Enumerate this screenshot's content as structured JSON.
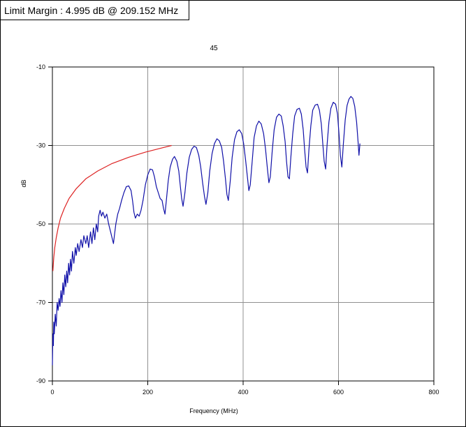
{
  "header": {
    "title": "Limit Margin : 4.995 dB @ 209.152 MHz"
  },
  "chart_data": {
    "type": "line",
    "title": "45",
    "xlabel": "Frequency (MHz)",
    "ylabel": "dB",
    "xlim": [
      0,
      800
    ],
    "ylim": [
      -90,
      -10
    ],
    "xticks": [
      0,
      200,
      400,
      600,
      800
    ],
    "yticks": [
      -10,
      -30,
      -50,
      -70,
      -90
    ],
    "grid": true,
    "colors": {
      "measured": "#1010a8",
      "limit": "#dd2222",
      "grid": "#909090"
    },
    "series": [
      {
        "color": "#dd2222",
        "points": [
          [
            1,
            -62
          ],
          [
            2,
            -60
          ],
          [
            3,
            -58.5
          ],
          [
            5,
            -56
          ],
          [
            8,
            -53.5
          ],
          [
            12,
            -51
          ],
          [
            17,
            -48.5
          ],
          [
            25,
            -46
          ],
          [
            35,
            -43.5
          ],
          [
            50,
            -41
          ],
          [
            70,
            -38.5
          ],
          [
            95,
            -36.5
          ],
          [
            125,
            -34.6
          ],
          [
            160,
            -33
          ],
          [
            195,
            -31.7
          ],
          [
            230,
            -30.6
          ],
          [
            250,
            -30
          ]
        ]
      },
      {
        "color": "#1010a8",
        "points": [
          [
            0,
            -86
          ],
          [
            1,
            -78
          ],
          [
            2,
            -81
          ],
          [
            3,
            -75
          ],
          [
            4,
            -78
          ],
          [
            6,
            -73
          ],
          [
            8,
            -76
          ],
          [
            10,
            -70
          ],
          [
            12,
            -72
          ],
          [
            14,
            -69
          ],
          [
            16,
            -71
          ],
          [
            18,
            -67
          ],
          [
            20,
            -70
          ],
          [
            22,
            -65
          ],
          [
            24,
            -68
          ],
          [
            26,
            -63
          ],
          [
            28,
            -66
          ],
          [
            30,
            -62
          ],
          [
            32,
            -65
          ],
          [
            34,
            -60
          ],
          [
            36,
            -63
          ],
          [
            38,
            -59
          ],
          [
            40,
            -62
          ],
          [
            42,
            -57
          ],
          [
            45,
            -60
          ],
          [
            48,
            -56
          ],
          [
            50,
            -58
          ],
          [
            53,
            -55
          ],
          [
            56,
            -57
          ],
          [
            60,
            -54
          ],
          [
            63,
            -56
          ],
          [
            66,
            -53
          ],
          [
            70,
            -55
          ],
          [
            73,
            -53
          ],
          [
            76,
            -56
          ],
          [
            80,
            -52
          ],
          [
            83,
            -55
          ],
          [
            86,
            -51
          ],
          [
            89,
            -54
          ],
          [
            92,
            -50
          ],
          [
            95,
            -52
          ],
          [
            97,
            -48
          ],
          [
            100,
            -46.5
          ],
          [
            103,
            -48
          ],
          [
            106,
            -47
          ],
          [
            110,
            -48.5
          ],
          [
            114,
            -47.5
          ],
          [
            118,
            -50
          ],
          [
            122,
            -52
          ],
          [
            126,
            -54
          ],
          [
            128,
            -55
          ],
          [
            130,
            -53
          ],
          [
            133,
            -50
          ],
          [
            137,
            -47.5
          ],
          [
            141,
            -46
          ],
          [
            145,
            -44
          ],
          [
            150,
            -42
          ],
          [
            155,
            -40.5
          ],
          [
            160,
            -40.3
          ],
          [
            165,
            -41.5
          ],
          [
            168,
            -44
          ],
          [
            171,
            -47
          ],
          [
            174,
            -48.5
          ],
          [
            178,
            -47.5
          ],
          [
            182,
            -48
          ],
          [
            186,
            -46.5
          ],
          [
            190,
            -44
          ],
          [
            195,
            -40
          ],
          [
            200,
            -37.5
          ],
          [
            205,
            -36
          ],
          [
            210,
            -36.2
          ],
          [
            214,
            -38
          ],
          [
            218,
            -40.5
          ],
          [
            222,
            -42
          ],
          [
            226,
            -43.5
          ],
          [
            230,
            -44
          ],
          [
            233,
            -46
          ],
          [
            236,
            -47.5
          ],
          [
            239,
            -44
          ],
          [
            243,
            -39
          ],
          [
            247,
            -35.5
          ],
          [
            252,
            -33.5
          ],
          [
            256,
            -32.8
          ],
          [
            261,
            -34
          ],
          [
            265,
            -36.5
          ],
          [
            268,
            -40
          ],
          [
            271,
            -43.5
          ],
          [
            274,
            -45.5
          ],
          [
            278,
            -42
          ],
          [
            282,
            -37
          ],
          [
            287,
            -33
          ],
          [
            292,
            -31
          ],
          [
            297,
            -30.2
          ],
          [
            302,
            -30.5
          ],
          [
            307,
            -32.5
          ],
          [
            311,
            -35.5
          ],
          [
            315,
            -39.5
          ],
          [
            319,
            -43
          ],
          [
            322,
            -45
          ],
          [
            326,
            -42
          ],
          [
            330,
            -36.5
          ],
          [
            335,
            -32
          ],
          [
            340,
            -29.5
          ],
          [
            345,
            -28.3
          ],
          [
            350,
            -28.8
          ],
          [
            355,
            -30.5
          ],
          [
            359,
            -34
          ],
          [
            363,
            -38.5
          ],
          [
            366,
            -42.5
          ],
          [
            369,
            -44
          ],
          [
            373,
            -39
          ],
          [
            377,
            -33
          ],
          [
            382,
            -28.5
          ],
          [
            387,
            -26.5
          ],
          [
            392,
            -26
          ],
          [
            397,
            -27
          ],
          [
            401,
            -29.5
          ],
          [
            405,
            -33.5
          ],
          [
            409,
            -38
          ],
          [
            412,
            -41.5
          ],
          [
            415,
            -40
          ],
          [
            419,
            -34
          ],
          [
            423,
            -28
          ],
          [
            428,
            -25
          ],
          [
            433,
            -23.8
          ],
          [
            438,
            -24.5
          ],
          [
            443,
            -27
          ],
          [
            447,
            -31
          ],
          [
            451,
            -36
          ],
          [
            454,
            -39.5
          ],
          [
            457,
            -38
          ],
          [
            461,
            -31.5
          ],
          [
            465,
            -26
          ],
          [
            470,
            -22.8
          ],
          [
            475,
            -22
          ],
          [
            480,
            -22.5
          ],
          [
            484,
            -25
          ],
          [
            488,
            -29
          ],
          [
            491,
            -34
          ],
          [
            494,
            -38
          ],
          [
            497,
            -38.5
          ],
          [
            500,
            -33
          ],
          [
            504,
            -27
          ],
          [
            508,
            -22.5
          ],
          [
            513,
            -20.8
          ],
          [
            518,
            -20.5
          ],
          [
            522,
            -22
          ],
          [
            526,
            -26
          ],
          [
            529,
            -31
          ],
          [
            532,
            -35.5
          ],
          [
            535,
            -37
          ],
          [
            538,
            -31
          ],
          [
            542,
            -25
          ],
          [
            546,
            -21
          ],
          [
            551,
            -19.7
          ],
          [
            556,
            -19.5
          ],
          [
            560,
            -21
          ],
          [
            564,
            -24.5
          ],
          [
            567,
            -29.5
          ],
          [
            570,
            -34
          ],
          [
            573,
            -36
          ],
          [
            576,
            -30
          ],
          [
            580,
            -24
          ],
          [
            584,
            -20.5
          ],
          [
            589,
            -19
          ],
          [
            594,
            -19.5
          ],
          [
            598,
            -22
          ],
          [
            601,
            -27
          ],
          [
            604,
            -32.5
          ],
          [
            607,
            -35.5
          ],
          [
            610,
            -30
          ],
          [
            614,
            -23.5
          ],
          [
            618,
            -19.8
          ],
          [
            622,
            -18.2
          ],
          [
            626,
            -17.5
          ],
          [
            630,
            -18
          ],
          [
            634,
            -20
          ],
          [
            638,
            -24
          ],
          [
            641,
            -29
          ],
          [
            643,
            -32.5
          ],
          [
            645,
            -29.5
          ]
        ]
      }
    ]
  }
}
